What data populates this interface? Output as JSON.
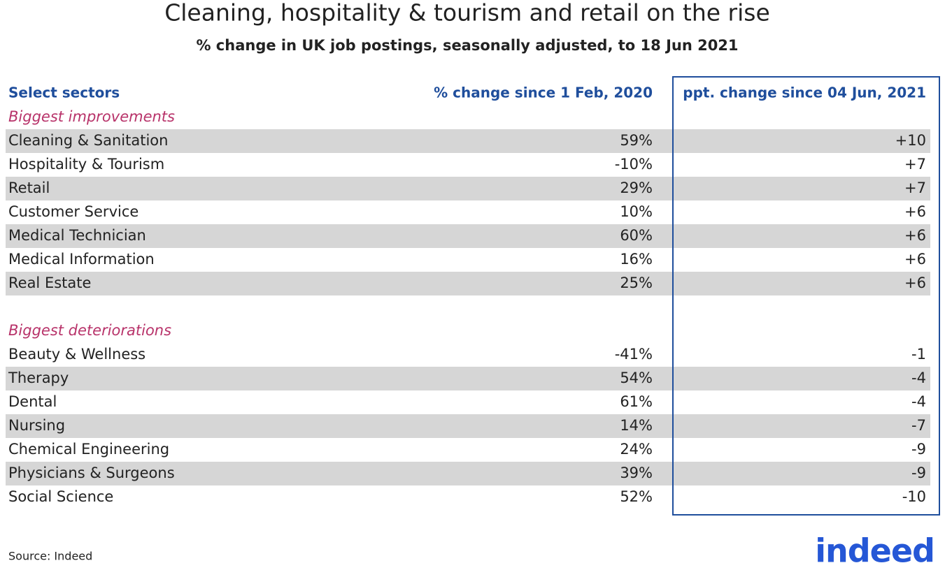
{
  "title": "Cleaning, hospitality & tourism and retail on the rise",
  "subtitle": "% change in UK job postings, seasonally adjusted, to 18 Jun 2021",
  "table": {
    "headers": [
      "Select sectors",
      "% change since 1 Feb, 2020",
      "ppt. change since 04 Jun, 2021"
    ],
    "sections": [
      {
        "label": "Biggest improvements",
        "rows": [
          [
            "Cleaning & Sanitation",
            "59%",
            "+10"
          ],
          [
            "Hospitality & Tourism",
            "-10%",
            "+7"
          ],
          [
            "Retail",
            "29%",
            "+7"
          ],
          [
            "Customer Service",
            "10%",
            "+6"
          ],
          [
            "Medical Technician",
            "60%",
            "+6"
          ],
          [
            "Medical Information",
            "16%",
            "+6"
          ],
          [
            "Real Estate",
            "25%",
            "+6"
          ]
        ]
      },
      {
        "label": "Biggest deteriorations",
        "rows": [
          [
            "Beauty & Wellness",
            "-41%",
            "-1"
          ],
          [
            "Therapy",
            "54%",
            "-4"
          ],
          [
            "Dental",
            "61%",
            "-4"
          ],
          [
            "Nursing",
            "14%",
            "-7"
          ],
          [
            "Chemical Engineering",
            "24%",
            "-9"
          ],
          [
            "Physicians & Surgeons",
            "39%",
            "-9"
          ],
          [
            "Social Science",
            "52%",
            "-10"
          ]
        ]
      }
    ]
  },
  "source": "Source: Indeed",
  "logo": "indeed"
}
